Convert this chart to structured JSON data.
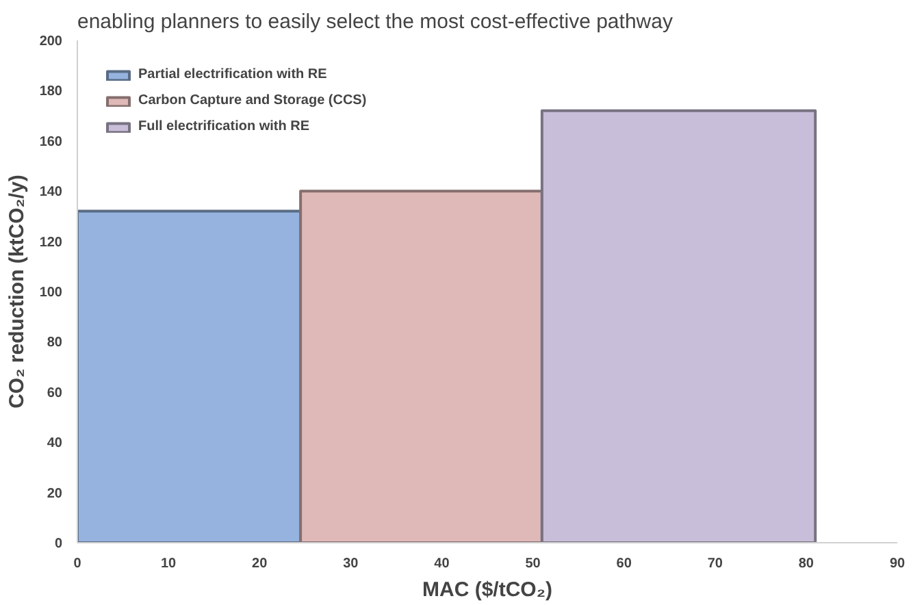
{
  "chart_data": {
    "type": "area",
    "annotations": [
      "enabling planners to easily select the most cost-effective pathway"
    ],
    "xlabel": "MAC ($/tCO₂)",
    "ylabel": "CO₂ reduction (ktCO₂/y)",
    "series": [
      {
        "name": "Partial electrification with RE",
        "color": "#95b3de",
        "x": [
          0,
          24.5
        ],
        "values": [
          132,
          132
        ]
      },
      {
        "name": "Carbon Capture and Storage (CCS)",
        "color": "#dfb9b8",
        "x": [
          24.5,
          51
        ],
        "values": [
          140,
          140
        ]
      },
      {
        "name": "Full electrification with RE",
        "color": "#c9bed9",
        "x": [
          51,
          81
        ],
        "values": [
          172,
          172
        ]
      }
    ],
    "xlim": [
      0,
      90
    ],
    "xticks": [
      0,
      10,
      20,
      30,
      40,
      50,
      60,
      70,
      80,
      90
    ],
    "ylim": [
      0,
      200
    ],
    "yticks": [
      0,
      20,
      40,
      60,
      80,
      100,
      120,
      140,
      160,
      180,
      200
    ],
    "grid": false,
    "legend": "top left"
  }
}
